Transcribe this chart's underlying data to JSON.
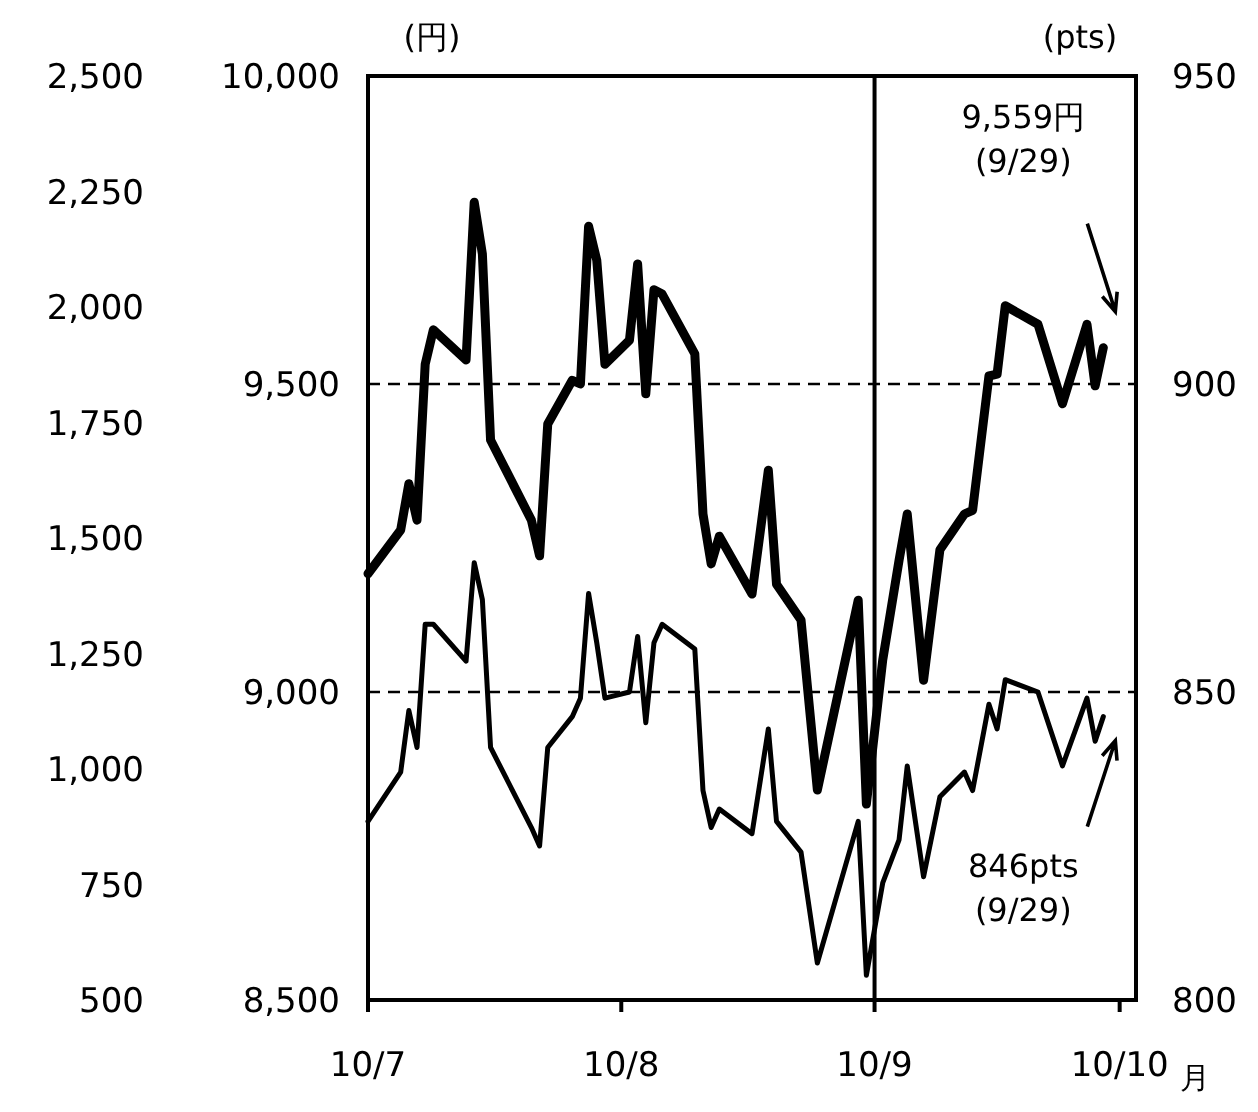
{
  "chart_data": {
    "type": "line",
    "xlabel": "月",
    "ylabel": "(円)",
    "y2label": "(pts)",
    "x": [
      "2010-07-01",
      "2010-07-05",
      "2010-07-06",
      "2010-07-07",
      "2010-07-08",
      "2010-07-09",
      "2010-07-13",
      "2010-07-14",
      "2010-07-15",
      "2010-07-16",
      "2010-07-21",
      "2010-07-22",
      "2010-07-23",
      "2010-07-26",
      "2010-07-27",
      "2010-07-28",
      "2010-07-29",
      "2010-07-30",
      "2010-08-02",
      "2010-08-03",
      "2010-08-04",
      "2010-08-05",
      "2010-08-06",
      "2010-08-10",
      "2010-08-11",
      "2010-08-12",
      "2010-08-13",
      "2010-08-17",
      "2010-08-19",
      "2010-08-20",
      "2010-08-23",
      "2010-08-25",
      "2010-08-30",
      "2010-08-31",
      "2010-09-02",
      "2010-09-04",
      "2010-09-05",
      "2010-09-07",
      "2010-09-09",
      "2010-09-12",
      "2010-09-13",
      "2010-09-15",
      "2010-09-16",
      "2010-09-17",
      "2010-09-21",
      "2010-09-24",
      "2010-09-27",
      "2010-09-28",
      "2010-09-29"
    ],
    "xlim": [
      "2010-07-01",
      "2010-10-03"
    ],
    "xticks": [
      {
        "value": "2010-07-01",
        "label": "10/7"
      },
      {
        "value": "2010-08-01",
        "label": "10/8"
      },
      {
        "value": "2010-09-01",
        "label": "10/9"
      },
      {
        "value": "2010-10-01",
        "label": "10/10"
      }
    ],
    "ylim": [
      8500,
      10000
    ],
    "yticks": [
      {
        "value": 8500,
        "label": "8,500"
      },
      {
        "value": 9000,
        "label": "9,000"
      },
      {
        "value": 9500,
        "label": "9,500"
      },
      {
        "value": 10000,
        "label": "10,000"
      }
    ],
    "y2lim": [
      800,
      950
    ],
    "y2ticks": [
      800,
      850,
      900,
      950
    ],
    "y3lim": [
      500,
      2500
    ],
    "y3ticks": [
      500,
      750,
      {
        "value": 1000,
        "label": "1,000"
      },
      {
        "value": 1250,
        "label": "1,250"
      },
      {
        "value": 1500,
        "label": "1,500"
      },
      {
        "value": 1750,
        "label": "1,750"
      },
      {
        "value": 2000,
        "label": "2,000"
      },
      {
        "value": 2250,
        "label": "2,250"
      },
      {
        "value": 2500,
        "label": "2,500"
      }
    ],
    "line_style": "solid",
    "series": [
      {
        "color": "#000000",
        "values": [
          9192,
          9263,
          9338,
          9279,
          9532,
          9588,
          9539,
          9795,
          9711,
          9409,
          9279,
          9221,
          9435,
          9506,
          9500,
          9756,
          9701,
          9532,
          9571,
          9695,
          9484,
          9653,
          9646,
          9549,
          9289,
          9208,
          9253,
          9159,
          9360,
          9175,
          9117,
          8841,
          9149,
          8818,
          9052,
          9214,
          9289,
          9019,
          9231,
          9289,
          9295,
          9513,
          9516,
          9627,
          9597,
          9468,
          9597,
          9497,
          9559
        ]
      },
      {
        "color": "#000000",
        "axis": "y2",
        "values": [
          829,
          837,
          847,
          841,
          861,
          861,
          855,
          871,
          865,
          841,
          828,
          825,
          841,
          846,
          849,
          866,
          858,
          849,
          850,
          859,
          845,
          858,
          861,
          857,
          834,
          828,
          831,
          827,
          844,
          829,
          824,
          806,
          829,
          804,
          819,
          826,
          838,
          820,
          833,
          837,
          834,
          848,
          844,
          852,
          850,
          838,
          849,
          842,
          846
        ]
      }
    ],
    "ref_lines": [
      {
        "axis": "y",
        "value": 9500,
        "line_style": "dashed"
      },
      {
        "axis": "y",
        "value": 9000,
        "line_style": "dashed"
      },
      {
        "axis": "x",
        "value": "2010-09-01",
        "line_style": "solid"
      }
    ],
    "annotations": [
      "9,559円\n(9/29)",
      "846pts\n(9/29)"
    ]
  }
}
